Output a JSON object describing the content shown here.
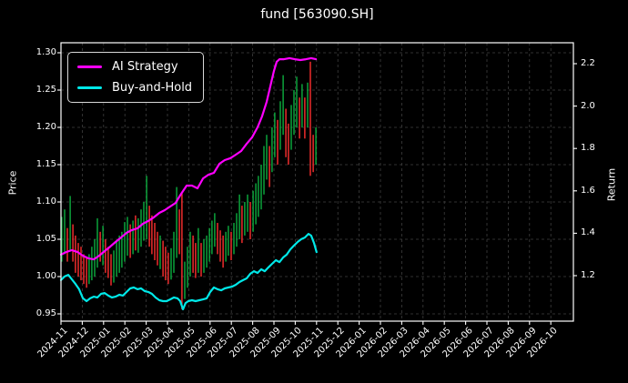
{
  "window": {
    "title": "fund [563090.SH]"
  },
  "chart_data": {
    "type": "mixed",
    "title": "fund [563090.SH]",
    "background": "#000000",
    "text_color": "#ffffff",
    "grid": true,
    "grid_color": "#3f3f3f",
    "left_axis": {
      "label": "Price",
      "ticks": [
        1.3,
        1.25,
        1.2,
        1.15,
        1.1,
        1.05,
        1.0,
        0.95
      ],
      "range": [
        0.941,
        1.314
      ]
    },
    "right_axis": {
      "label": "Return",
      "ticks": [
        2.2,
        2.0,
        1.8,
        1.6,
        1.4,
        1.2
      ],
      "range": [
        0.99,
        2.3
      ]
    },
    "x_axis": {
      "units": "months since 2024-11",
      "tick_labels": [
        "2024-11",
        "2024-12",
        "2025-01",
        "2025-02",
        "2025-03",
        "2025-04",
        "2025-05",
        "2025-06",
        "2025-07",
        "2025-08",
        "2025-09",
        "2025-10",
        "2025-11",
        "2025-12",
        "2026-01",
        "2026-02",
        "2026-03",
        "2026-04",
        "2026-05",
        "2026-06",
        "2026-07",
        "2026-08",
        "2026-09",
        "2026-10"
      ],
      "data_extent": [
        0,
        12.0
      ]
    },
    "legend": {
      "position": "upper-left",
      "entries": [
        {
          "label": "AI Strategy",
          "color": "#ff00ff"
        },
        {
          "label": "Buy-and-Hold",
          "color": "#00e8e8"
        }
      ]
    },
    "series": [
      {
        "name": "AI Strategy",
        "type": "line",
        "axis": "return",
        "color": "#ff00ff",
        "width": 2.2,
        "points": [
          [
            0,
            1.299
          ],
          [
            0.26,
            1.312
          ],
          [
            0.51,
            1.32
          ],
          [
            0.77,
            1.312
          ],
          [
            1.03,
            1.294
          ],
          [
            1.28,
            1.282
          ],
          [
            1.54,
            1.277
          ],
          [
            1.79,
            1.294
          ],
          [
            2.05,
            1.316
          ],
          [
            2.31,
            1.337
          ],
          [
            2.56,
            1.359
          ],
          [
            2.82,
            1.38
          ],
          [
            3.08,
            1.402
          ],
          [
            3.33,
            1.415
          ],
          [
            3.59,
            1.423
          ],
          [
            3.85,
            1.445
          ],
          [
            4.1,
            1.458
          ],
          [
            4.36,
            1.475
          ],
          [
            4.62,
            1.496
          ],
          [
            4.87,
            1.509
          ],
          [
            5.13,
            1.526
          ],
          [
            5.38,
            1.543
          ],
          [
            5.64,
            1.586
          ],
          [
            5.9,
            1.625
          ],
          [
            6.15,
            1.625
          ],
          [
            6.41,
            1.612
          ],
          [
            6.67,
            1.659
          ],
          [
            6.92,
            1.676
          ],
          [
            7.18,
            1.685
          ],
          [
            7.44,
            1.728
          ],
          [
            7.69,
            1.745
          ],
          [
            7.95,
            1.754
          ],
          [
            8.21,
            1.771
          ],
          [
            8.46,
            1.788
          ],
          [
            8.72,
            1.822
          ],
          [
            8.97,
            1.852
          ],
          [
            9.23,
            1.9
          ],
          [
            9.44,
            1.951
          ],
          [
            9.66,
            2.02
          ],
          [
            9.83,
            2.093
          ],
          [
            10.0,
            2.166
          ],
          [
            10.13,
            2.209
          ],
          [
            10.26,
            2.221
          ],
          [
            10.47,
            2.221
          ],
          [
            10.73,
            2.226
          ],
          [
            10.98,
            2.221
          ],
          [
            11.24,
            2.217
          ],
          [
            11.5,
            2.221
          ],
          [
            11.75,
            2.226
          ],
          [
            11.97,
            2.221
          ]
        ]
      },
      {
        "name": "Buy-and-Hold",
        "type": "line",
        "axis": "return",
        "color": "#00e8e8",
        "width": 2.2,
        "points": [
          [
            0,
            1.179
          ],
          [
            0.17,
            1.196
          ],
          [
            0.34,
            1.204
          ],
          [
            0.51,
            1.183
          ],
          [
            0.68,
            1.161
          ],
          [
            0.85,
            1.136
          ],
          [
            1.03,
            1.093
          ],
          [
            1.2,
            1.08
          ],
          [
            1.37,
            1.093
          ],
          [
            1.54,
            1.101
          ],
          [
            1.71,
            1.097
          ],
          [
            1.88,
            1.114
          ],
          [
            2.05,
            1.118
          ],
          [
            2.22,
            1.106
          ],
          [
            2.39,
            1.097
          ],
          [
            2.56,
            1.101
          ],
          [
            2.74,
            1.11
          ],
          [
            2.91,
            1.106
          ],
          [
            3.08,
            1.123
          ],
          [
            3.25,
            1.14
          ],
          [
            3.42,
            1.144
          ],
          [
            3.59,
            1.136
          ],
          [
            3.76,
            1.14
          ],
          [
            3.93,
            1.127
          ],
          [
            4.1,
            1.123
          ],
          [
            4.27,
            1.114
          ],
          [
            4.44,
            1.097
          ],
          [
            4.62,
            1.084
          ],
          [
            4.79,
            1.08
          ],
          [
            4.96,
            1.08
          ],
          [
            5.13,
            1.088
          ],
          [
            5.3,
            1.097
          ],
          [
            5.47,
            1.093
          ],
          [
            5.6,
            1.08
          ],
          [
            5.73,
            1.041
          ],
          [
            5.85,
            1.071
          ],
          [
            5.98,
            1.08
          ],
          [
            6.15,
            1.084
          ],
          [
            6.32,
            1.08
          ],
          [
            6.5,
            1.084
          ],
          [
            6.67,
            1.088
          ],
          [
            6.84,
            1.093
          ],
          [
            7.01,
            1.123
          ],
          [
            7.18,
            1.144
          ],
          [
            7.35,
            1.136
          ],
          [
            7.52,
            1.131
          ],
          [
            7.69,
            1.14
          ],
          [
            7.86,
            1.144
          ],
          [
            8.03,
            1.148
          ],
          [
            8.21,
            1.157
          ],
          [
            8.38,
            1.17
          ],
          [
            8.55,
            1.179
          ],
          [
            8.72,
            1.187
          ],
          [
            8.89,
            1.209
          ],
          [
            9.06,
            1.221
          ],
          [
            9.23,
            1.213
          ],
          [
            9.4,
            1.23
          ],
          [
            9.57,
            1.221
          ],
          [
            9.74,
            1.239
          ],
          [
            9.91,
            1.256
          ],
          [
            10.09,
            1.273
          ],
          [
            10.26,
            1.264
          ],
          [
            10.43,
            1.286
          ],
          [
            10.6,
            1.299
          ],
          [
            10.77,
            1.324
          ],
          [
            10.94,
            1.342
          ],
          [
            11.11,
            1.359
          ],
          [
            11.28,
            1.372
          ],
          [
            11.45,
            1.38
          ],
          [
            11.62,
            1.397
          ],
          [
            11.75,
            1.389
          ],
          [
            11.88,
            1.354
          ],
          [
            12.0,
            1.311
          ]
        ]
      },
      {
        "name": "fund daily price range",
        "type": "hl-bars",
        "axis": "price",
        "up_color": "#0caf3f",
        "down_color": "#ff2f2f",
        "bar_width": 1.4,
        "bars": [
          [
            0.04,
            1.02,
            1.08,
            "u"
          ],
          [
            0.17,
            1.03,
            1.09,
            "u"
          ],
          [
            0.3,
            1.02,
            1.065,
            "d"
          ],
          [
            0.43,
            1.035,
            1.108,
            "u"
          ],
          [
            0.56,
            1.02,
            1.07,
            "d"
          ],
          [
            0.68,
            1.005,
            1.055,
            "d"
          ],
          [
            0.81,
            1.0,
            1.045,
            "d"
          ],
          [
            0.94,
            0.995,
            1.04,
            "d"
          ],
          [
            1.07,
            0.99,
            1.03,
            "d"
          ],
          [
            1.2,
            0.985,
            1.025,
            "d"
          ],
          [
            1.32,
            0.99,
            1.03,
            "u"
          ],
          [
            1.45,
            0.995,
            1.04,
            "u"
          ],
          [
            1.58,
            1.0,
            1.05,
            "u"
          ],
          [
            1.71,
            1.012,
            1.078,
            "u"
          ],
          [
            1.84,
            1.02,
            1.06,
            "d"
          ],
          [
            1.97,
            1.015,
            1.068,
            "u"
          ],
          [
            2.09,
            1.005,
            1.05,
            "d"
          ],
          [
            2.22,
            0.998,
            1.04,
            "d"
          ],
          [
            2.35,
            0.988,
            1.03,
            "d"
          ],
          [
            2.48,
            0.992,
            1.035,
            "u"
          ],
          [
            2.61,
            1.0,
            1.048,
            "u"
          ],
          [
            2.74,
            1.005,
            1.055,
            "u"
          ],
          [
            2.86,
            1.012,
            1.06,
            "u"
          ],
          [
            2.99,
            1.02,
            1.073,
            "u"
          ],
          [
            3.12,
            1.028,
            1.08,
            "u"
          ],
          [
            3.25,
            1.025,
            1.07,
            "d"
          ],
          [
            3.38,
            1.03,
            1.075,
            "u"
          ],
          [
            3.5,
            1.035,
            1.082,
            "d"
          ],
          [
            3.63,
            1.032,
            1.078,
            "u"
          ],
          [
            3.76,
            1.04,
            1.09,
            "u"
          ],
          [
            3.89,
            1.048,
            1.1,
            "u"
          ],
          [
            4.02,
            1.05,
            1.135,
            "u"
          ],
          [
            4.15,
            1.04,
            1.095,
            "d"
          ],
          [
            4.27,
            1.03,
            1.082,
            "d"
          ],
          [
            4.4,
            1.022,
            1.072,
            "d"
          ],
          [
            4.53,
            1.015,
            1.06,
            "d"
          ],
          [
            4.66,
            1.01,
            1.055,
            "u"
          ],
          [
            4.79,
            1.0,
            1.048,
            "d"
          ],
          [
            4.91,
            0.995,
            1.04,
            "d"
          ],
          [
            5.04,
            0.99,
            1.032,
            "d"
          ],
          [
            5.17,
            0.996,
            1.038,
            "u"
          ],
          [
            5.3,
            1.005,
            1.06,
            "u"
          ],
          [
            5.43,
            1.025,
            1.12,
            "u"
          ],
          [
            5.56,
            1.03,
            1.09,
            "d"
          ],
          [
            5.68,
            0.956,
            1.112,
            "d"
          ],
          [
            5.81,
            0.97,
            1.02,
            "u"
          ],
          [
            5.94,
            0.985,
            1.04,
            "u"
          ],
          [
            6.07,
            1.0,
            1.06,
            "u"
          ],
          [
            6.2,
            1.005,
            1.055,
            "d"
          ],
          [
            6.32,
            0.998,
            1.045,
            "d"
          ],
          [
            6.45,
            1.005,
            1.065,
            "u"
          ],
          [
            6.58,
            1.0,
            1.045,
            "d"
          ],
          [
            6.71,
            1.005,
            1.05,
            "u"
          ],
          [
            6.84,
            1.012,
            1.055,
            "u"
          ],
          [
            6.97,
            1.02,
            1.065,
            "u"
          ],
          [
            7.09,
            1.03,
            1.075,
            "u"
          ],
          [
            7.22,
            1.04,
            1.085,
            "u"
          ],
          [
            7.35,
            1.03,
            1.072,
            "d"
          ],
          [
            7.48,
            1.02,
            1.062,
            "d"
          ],
          [
            7.61,
            1.012,
            1.055,
            "d"
          ],
          [
            7.74,
            1.02,
            1.06,
            "u"
          ],
          [
            7.86,
            1.028,
            1.068,
            "u"
          ],
          [
            7.99,
            1.022,
            1.06,
            "d"
          ],
          [
            8.12,
            1.03,
            1.072,
            "u"
          ],
          [
            8.25,
            1.04,
            1.085,
            "u"
          ],
          [
            8.38,
            1.05,
            1.11,
            "u"
          ],
          [
            8.5,
            1.045,
            1.095,
            "d"
          ],
          [
            8.63,
            1.055,
            1.1,
            "u"
          ],
          [
            8.76,
            1.06,
            1.11,
            "u"
          ],
          [
            8.89,
            1.05,
            1.1,
            "d"
          ],
          [
            9.02,
            1.06,
            1.115,
            "u"
          ],
          [
            9.15,
            1.07,
            1.125,
            "u"
          ],
          [
            9.27,
            1.08,
            1.135,
            "u"
          ],
          [
            9.4,
            1.09,
            1.15,
            "u"
          ],
          [
            9.53,
            1.11,
            1.175,
            "u"
          ],
          [
            9.66,
            1.13,
            1.19,
            "u"
          ],
          [
            9.79,
            1.12,
            1.175,
            "d"
          ],
          [
            9.91,
            1.14,
            1.2,
            "u"
          ],
          [
            10.04,
            1.16,
            1.22,
            "u"
          ],
          [
            10.17,
            1.15,
            1.21,
            "d"
          ],
          [
            10.3,
            1.17,
            1.235,
            "u"
          ],
          [
            10.43,
            1.19,
            1.27,
            "u"
          ],
          [
            10.56,
            1.16,
            1.225,
            "d"
          ],
          [
            10.68,
            1.15,
            1.205,
            "d"
          ],
          [
            10.81,
            1.17,
            1.23,
            "u"
          ],
          [
            10.94,
            1.19,
            1.25,
            "u"
          ],
          [
            11.07,
            1.2,
            1.268,
            "u"
          ],
          [
            11.2,
            1.185,
            1.24,
            "d"
          ],
          [
            11.32,
            1.2,
            1.258,
            "u"
          ],
          [
            11.45,
            1.185,
            1.24,
            "d"
          ],
          [
            11.58,
            1.2,
            1.26,
            "u"
          ],
          [
            11.71,
            1.135,
            1.288,
            "d"
          ],
          [
            11.84,
            1.14,
            1.19,
            "d"
          ],
          [
            11.97,
            1.15,
            1.2,
            "u"
          ]
        ]
      }
    ]
  }
}
